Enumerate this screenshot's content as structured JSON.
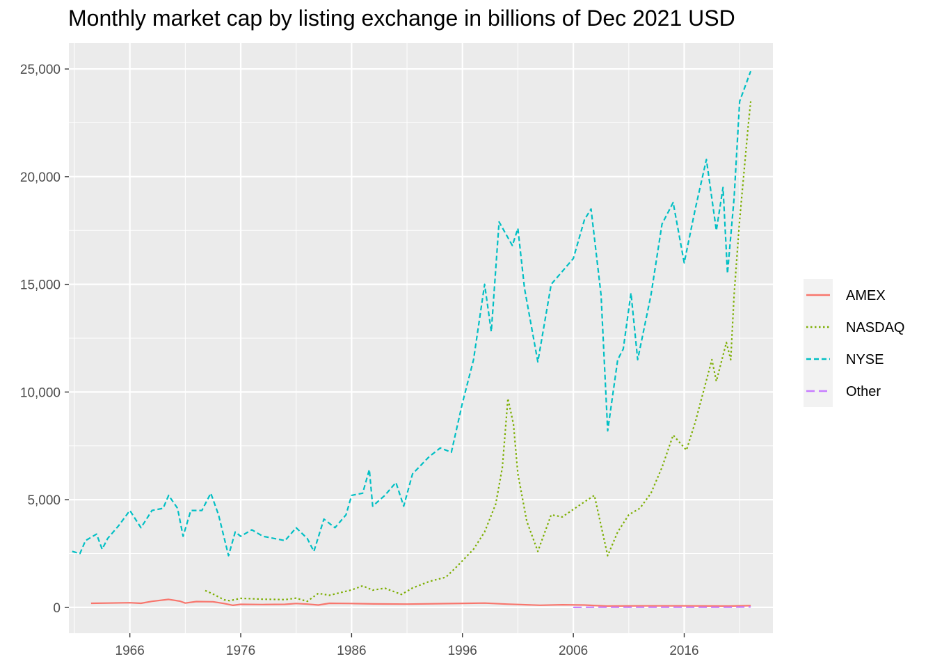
{
  "chart_data": {
    "type": "line",
    "title": "Monthly market cap by listing exchange in billions of Dec 2021 USD",
    "xlabel": "",
    "ylabel": "",
    "xlim": [
      1960.5,
      2024.0
    ],
    "ylim": [
      -1200,
      26200
    ],
    "x_ticks": [
      1966,
      1976,
      1986,
      1996,
      2006,
      2016
    ],
    "y_ticks": [
      0,
      5000,
      10000,
      15000,
      20000,
      25000
    ],
    "y_tick_labels": [
      "0",
      "5,000",
      "10,000",
      "15,000",
      "20,000",
      "25,000"
    ],
    "grid": true,
    "legend_position": "right",
    "series": [
      {
        "name": "AMEX",
        "color": "#F8766D",
        "dash": "solid",
        "points": [
          [
            1962.5,
            190
          ],
          [
            1964,
            200
          ],
          [
            1966,
            215
          ],
          [
            1967,
            190
          ],
          [
            1968,
            280
          ],
          [
            1969.5,
            370
          ],
          [
            1970.5,
            290
          ],
          [
            1971,
            200
          ],
          [
            1972,
            270
          ],
          [
            1973.5,
            260
          ],
          [
            1974.5,
            180
          ],
          [
            1975.3,
            95
          ],
          [
            1976,
            140
          ],
          [
            1978,
            130
          ],
          [
            1980,
            140
          ],
          [
            1981,
            180
          ],
          [
            1982,
            150
          ],
          [
            1983,
            110
          ],
          [
            1984,
            190
          ],
          [
            1986,
            180
          ],
          [
            1988,
            160
          ],
          [
            1991,
            150
          ],
          [
            1996,
            185
          ],
          [
            1998,
            200
          ],
          [
            2000,
            150
          ],
          [
            2003,
            100
          ],
          [
            2005,
            120
          ],
          [
            2007,
            110
          ],
          [
            2009,
            60
          ],
          [
            2012,
            70
          ],
          [
            2016,
            70
          ],
          [
            2020,
            60
          ],
          [
            2022,
            80
          ]
        ]
      },
      {
        "name": "NASDAQ",
        "color": "#7CAE00",
        "dash": "dotted",
        "points": [
          [
            1972.8,
            780
          ],
          [
            1973.5,
            620
          ],
          [
            1974.5,
            350
          ],
          [
            1975,
            310
          ],
          [
            1976,
            420
          ],
          [
            1978,
            380
          ],
          [
            1980,
            360
          ],
          [
            1981,
            430
          ],
          [
            1982,
            280
          ],
          [
            1983,
            650
          ],
          [
            1984,
            560
          ],
          [
            1986,
            810
          ],
          [
            1987,
            1000
          ],
          [
            1987.9,
            800
          ],
          [
            1989,
            890
          ],
          [
            1990.5,
            600
          ],
          [
            1991.5,
            900
          ],
          [
            1993,
            1200
          ],
          [
            1994.5,
            1400
          ],
          [
            1995.5,
            1900
          ],
          [
            1997,
            2700
          ],
          [
            1998,
            3500
          ],
          [
            1999,
            4800
          ],
          [
            1999.6,
            6500
          ],
          [
            2000.1,
            9700
          ],
          [
            2000.6,
            8500
          ],
          [
            2001,
            6200
          ],
          [
            2001.8,
            4000
          ],
          [
            2002.8,
            2600
          ],
          [
            2004,
            4300
          ],
          [
            2005,
            4200
          ],
          [
            2007,
            4900
          ],
          [
            2007.9,
            5200
          ],
          [
            2009.1,
            2400
          ],
          [
            2010,
            3500
          ],
          [
            2011,
            4300
          ],
          [
            2012,
            4600
          ],
          [
            2013,
            5300
          ],
          [
            2014,
            6500
          ],
          [
            2015,
            8000
          ],
          [
            2016.2,
            7300
          ],
          [
            2017,
            8600
          ],
          [
            2018.5,
            11500
          ],
          [
            2018.9,
            10500
          ],
          [
            2019.8,
            12300
          ],
          [
            2020.2,
            11500
          ],
          [
            2020.5,
            14500
          ],
          [
            2021,
            18000
          ],
          [
            2021.8,
            22500
          ],
          [
            2022,
            23500
          ]
        ]
      },
      {
        "name": "NYSE",
        "color": "#00BFC4",
        "dash": "dashed",
        "points": [
          [
            1960.8,
            2600
          ],
          [
            1961.5,
            2500
          ],
          [
            1962,
            3100
          ],
          [
            1963,
            3400
          ],
          [
            1963.5,
            2700
          ],
          [
            1964,
            3200
          ],
          [
            1965,
            3800
          ],
          [
            1966,
            4500
          ],
          [
            1967,
            3700
          ],
          [
            1968,
            4500
          ],
          [
            1969,
            4600
          ],
          [
            1969.5,
            5200
          ],
          [
            1970.3,
            4600
          ],
          [
            1970.8,
            3300
          ],
          [
            1971.5,
            4500
          ],
          [
            1972.5,
            4500
          ],
          [
            1973.3,
            5300
          ],
          [
            1974,
            4300
          ],
          [
            1974.9,
            2400
          ],
          [
            1975.5,
            3500
          ],
          [
            1976,
            3300
          ],
          [
            1977,
            3600
          ],
          [
            1978,
            3300
          ],
          [
            1980,
            3100
          ],
          [
            1981,
            3700
          ],
          [
            1982,
            3200
          ],
          [
            1982.6,
            2600
          ],
          [
            1983.5,
            4100
          ],
          [
            1984.5,
            3700
          ],
          [
            1985.5,
            4300
          ],
          [
            1986,
            5200
          ],
          [
            1987,
            5300
          ],
          [
            1987.6,
            6400
          ],
          [
            1987.9,
            4700
          ],
          [
            1989,
            5200
          ],
          [
            1990,
            5800
          ],
          [
            1990.7,
            4700
          ],
          [
            1991.5,
            6200
          ],
          [
            1993,
            7000
          ],
          [
            1994,
            7400
          ],
          [
            1995,
            7200
          ],
          [
            1996,
            9500
          ],
          [
            1997,
            11500
          ],
          [
            1998,
            15000
          ],
          [
            1998.6,
            12800
          ],
          [
            1999.3,
            17900
          ],
          [
            2000.5,
            16800
          ],
          [
            2001,
            17600
          ],
          [
            2001.6,
            14800
          ],
          [
            2002.8,
            11400
          ],
          [
            2004,
            15000
          ],
          [
            2005,
            15600
          ],
          [
            2006,
            16200
          ],
          [
            2007,
            18000
          ],
          [
            2007.6,
            18500
          ],
          [
            2008.5,
            14500
          ],
          [
            2009.1,
            8200
          ],
          [
            2010,
            11500
          ],
          [
            2010.5,
            12000
          ],
          [
            2011.2,
            14600
          ],
          [
            2011.8,
            11500
          ],
          [
            2013,
            14500
          ],
          [
            2014,
            17800
          ],
          [
            2015,
            18800
          ],
          [
            2016,
            16000
          ],
          [
            2017,
            18500
          ],
          [
            2018,
            20800
          ],
          [
            2018.9,
            17500
          ],
          [
            2019.5,
            19500
          ],
          [
            2019.9,
            15500
          ],
          [
            2020.5,
            19000
          ],
          [
            2021,
            23500
          ],
          [
            2022,
            24900
          ]
        ]
      },
      {
        "name": "Other",
        "color": "#C77CFF",
        "dash": "longdash",
        "points": [
          [
            2006,
            0
          ],
          [
            2008,
            5
          ],
          [
            2012,
            5
          ],
          [
            2016,
            5
          ],
          [
            2020,
            5
          ],
          [
            2022,
            20
          ]
        ]
      }
    ]
  }
}
